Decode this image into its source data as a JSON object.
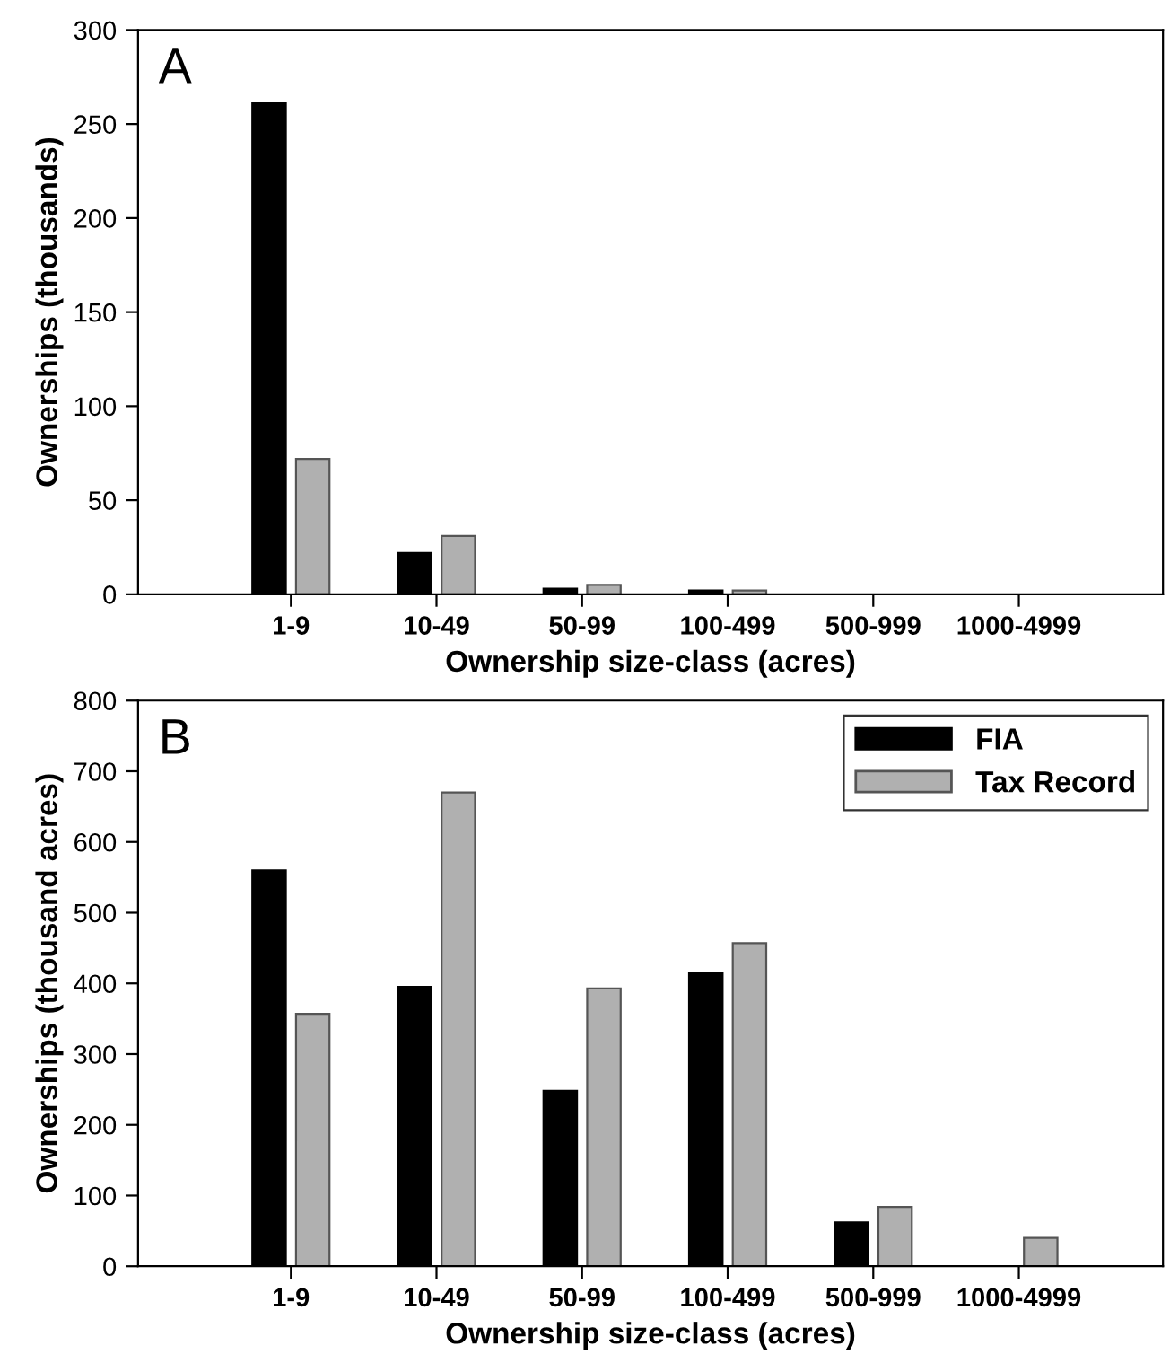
{
  "chart_data": [
    {
      "type": "bar",
      "annotations": [
        "A"
      ],
      "xlabel": "Ownership size-class (acres)",
      "ylabel": "Ownerships (thousands)",
      "categories": [
        "1-9",
        "10-49",
        "50-99",
        "100-499",
        "500-999",
        "1000-4999"
      ],
      "series": [
        {
          "color": "#000000",
          "values": [
            261,
            22,
            3,
            2,
            null,
            null
          ]
        },
        {
          "color": "#b0b0b0",
          "values": [
            72,
            31,
            5,
            2,
            null,
            null
          ]
        }
      ],
      "ylim": [
        0,
        300
      ],
      "yticks": [
        0,
        50,
        100,
        150,
        200,
        250,
        300
      ],
      "grid": false,
      "legend": false
    },
    {
      "type": "bar",
      "annotations": [
        "B"
      ],
      "xlabel": "Ownership size-class (acres)",
      "ylabel": "Ownerships (thousand acres)",
      "categories": [
        "1-9",
        "10-49",
        "50-99",
        "100-499",
        "500-999",
        "1000-4999"
      ],
      "series": [
        {
          "name": "FIA",
          "color": "#000000",
          "values": [
            560,
            395,
            248,
            415,
            62,
            null
          ]
        },
        {
          "name": "Tax Record",
          "color": "#b0b0b0",
          "values": [
            357,
            670,
            393,
            457,
            84,
            40
          ]
        }
      ],
      "ylim": [
        0,
        800
      ],
      "yticks": [
        0,
        100,
        200,
        300,
        400,
        500,
        600,
        700,
        800
      ],
      "grid": false,
      "legend": "top right"
    }
  ]
}
